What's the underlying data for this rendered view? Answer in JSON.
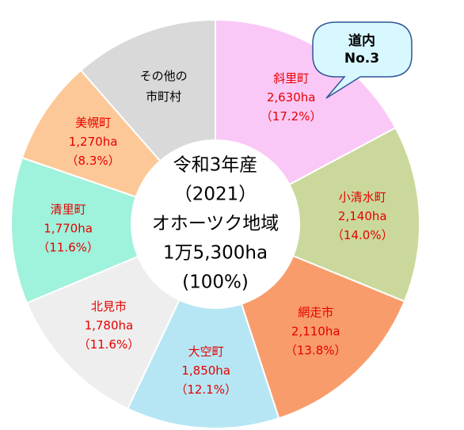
{
  "chart_data": {
    "type": "donut",
    "categories": [
      "斜里町",
      "小清水町",
      "網走市",
      "大空町",
      "北見市",
      "清里町",
      "美幌町",
      "その他の\n市町村"
    ],
    "values": [
      2630,
      2140,
      2110,
      1850,
      1780,
      1770,
      1270,
      1750
    ],
    "value_labels": [
      "2,630ha",
      "2,140ha",
      "2,110ha",
      "1,850ha",
      "1,780ha",
      "1,770ha",
      "1,270ha",
      null
    ],
    "shares": [
      17.2,
      14.0,
      13.8,
      12.1,
      11.6,
      11.6,
      8.3,
      null
    ],
    "share_labels": [
      "（17.2%）",
      "（14.0%）",
      "（13.8%）",
      "（12.1%）",
      "（11.6%）",
      "（11.6%）",
      "（8.3%）",
      null
    ],
    "colors": [
      "#fac8f7",
      "#cad99b",
      "#f89c6c",
      "#b6e6f3",
      "#eeeeee",
      "#9ff2db",
      "#fdc897",
      "#d9d9d9"
    ],
    "label_colors": [
      "#e60000",
      "#e60000",
      "#e60000",
      "#e60000",
      "#e60000",
      "#e60000",
      "#e60000",
      "#000000"
    ],
    "center_text": [
      "令和3年産",
      "（2021）",
      "オホーツク地域",
      "1万5,300ha",
      "(100%)"
    ],
    "callout": [
      "道内",
      "No.3"
    ]
  }
}
